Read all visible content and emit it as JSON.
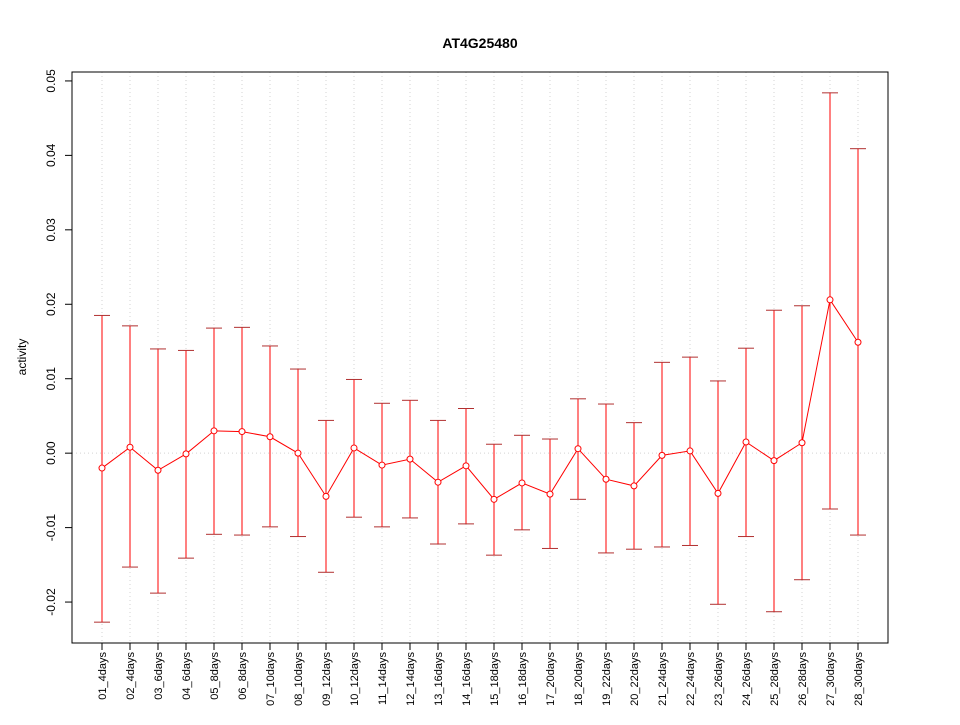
{
  "chart_data": {
    "type": "line",
    "title": "AT4G25480",
    "xlabel": "",
    "ylabel": "activity",
    "ylim": [
      -0.0255,
      0.0512
    ],
    "yticks": [
      -0.02,
      -0.01,
      0.0,
      0.01,
      0.02,
      0.03,
      0.04,
      0.05
    ],
    "ytick_labels": [
      "-0.02",
      "-0.01",
      "0.00",
      "0.01",
      "0.02",
      "0.03",
      "0.04",
      "0.05"
    ],
    "grid": "dotted vertical per category, dotted horizontal at 0",
    "color": "#ff0000",
    "categories": [
      "01_4days",
      "02_4days",
      "03_6days",
      "04_6days",
      "05_8days",
      "06_8days",
      "07_10days",
      "08_10days",
      "09_12days",
      "10_12days",
      "11_14days",
      "12_14days",
      "13_16days",
      "14_16days",
      "15_18days",
      "16_18days",
      "17_20days",
      "18_20days",
      "19_22days",
      "20_22days",
      "21_24days",
      "22_24days",
      "23_26days",
      "24_26days",
      "25_28days",
      "26_28days",
      "27_30days",
      "28_30days"
    ],
    "values": [
      -0.002,
      0.0008,
      -0.0023,
      -0.0001,
      0.003,
      0.0029,
      0.0022,
      0.0,
      -0.0058,
      0.0007,
      -0.0016,
      -0.0008,
      -0.0039,
      -0.0017,
      -0.0062,
      -0.004,
      -0.0055,
      0.0006,
      -0.0035,
      -0.0044,
      -0.0003,
      0.0003,
      -0.0054,
      0.0015,
      -0.001,
      0.0014,
      0.0206,
      0.0149
    ],
    "upper": [
      0.0185,
      0.0171,
      0.014,
      0.0138,
      0.0168,
      0.0169,
      0.0144,
      0.0113,
      0.0044,
      0.0099,
      0.0067,
      0.0071,
      0.0044,
      0.006,
      0.0012,
      0.0024,
      0.0019,
      0.0073,
      0.0066,
      0.0041,
      0.0122,
      0.0129,
      0.0097,
      0.0141,
      0.0192,
      0.0198,
      0.0484,
      0.0409
    ],
    "lower": [
      -0.0227,
      -0.0153,
      -0.0188,
      -0.0141,
      -0.0109,
      -0.011,
      -0.0099,
      -0.0112,
      -0.016,
      -0.0086,
      -0.0099,
      -0.0087,
      -0.0122,
      -0.0095,
      -0.0137,
      -0.0103,
      -0.0128,
      -0.0062,
      -0.0134,
      -0.0129,
      -0.0126,
      -0.0124,
      -0.0203,
      -0.0112,
      -0.0213,
      -0.017,
      -0.0075,
      -0.011
    ]
  }
}
